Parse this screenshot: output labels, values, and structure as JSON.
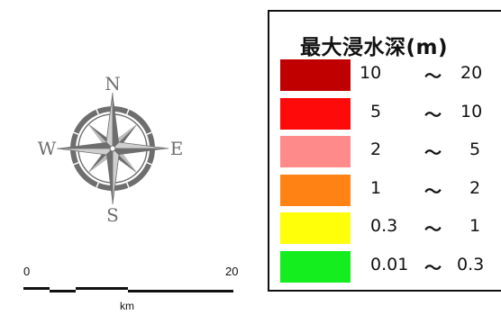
{
  "compass": {
    "north": "N",
    "south": "S",
    "east": "E",
    "west": "W",
    "color": "#6e6e6e"
  },
  "scale_bar": {
    "start_label": "0",
    "end_label": "20",
    "unit": "km"
  },
  "legend": {
    "title": "最大浸水深(m)",
    "items": [
      {
        "min": "10",
        "sep": "〜",
        "max": "20",
        "color": "#c00000"
      },
      {
        "min": "5",
        "sep": "〜",
        "max": "10",
        "color": "#ff0a0a"
      },
      {
        "min": "2",
        "sep": "〜",
        "max": "5",
        "color": "#ff8a8a"
      },
      {
        "min": "1",
        "sep": "〜",
        "max": "2",
        "color": "#ff8214"
      },
      {
        "min": "0.3",
        "sep": "〜",
        "max": "1",
        "color": "#ffff0a"
      },
      {
        "min": "0.01",
        "sep": "〜",
        "max": "0.3",
        "color": "#14ee1e"
      }
    ]
  }
}
